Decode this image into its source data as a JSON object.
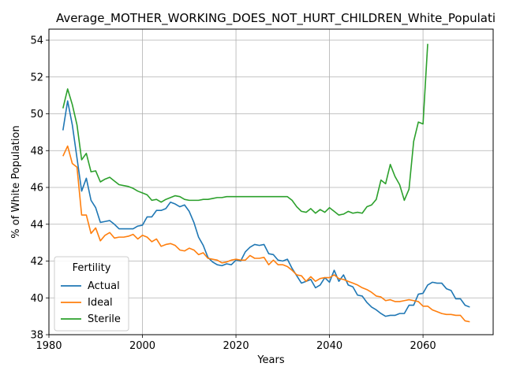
{
  "chart_data": {
    "type": "line",
    "title": "Average_MOTHER_WORKING_DOES_NOT_HURT_CHILDREN_White_Populati",
    "xlabel": "Years",
    "ylabel": "% of White Population",
    "xlim": [
      1980,
      2075
    ],
    "ylim": [
      38,
      54.6
    ],
    "xticks": [
      1980,
      2000,
      2020,
      2040,
      2060
    ],
    "yticks": [
      38,
      40,
      42,
      44,
      46,
      48,
      50,
      52,
      54
    ],
    "grid": true,
    "legend": {
      "title": "Fertility",
      "position": "lower-left"
    },
    "series": [
      {
        "name": "Actual",
        "color": "#1f77b4",
        "points": [
          [
            1983,
            49.1
          ],
          [
            1984,
            50.7
          ],
          [
            1985,
            49.4
          ],
          [
            1986,
            47.6
          ],
          [
            1987,
            45.8
          ],
          [
            1988,
            46.5
          ],
          [
            1989,
            45.3
          ],
          [
            1990,
            44.9
          ],
          [
            1991,
            44.1
          ],
          [
            1992,
            44.15
          ],
          [
            1993,
            44.2
          ],
          [
            1994,
            44.0
          ],
          [
            1995,
            43.75
          ],
          [
            1996,
            43.75
          ],
          [
            1997,
            43.75
          ],
          [
            1998,
            43.75
          ],
          [
            1999,
            43.9
          ],
          [
            2000,
            43.95
          ],
          [
            2001,
            44.4
          ],
          [
            2002,
            44.4
          ],
          [
            2003,
            44.75
          ],
          [
            2004,
            44.75
          ],
          [
            2005,
            44.85
          ],
          [
            2006,
            45.2
          ],
          [
            2007,
            45.1
          ],
          [
            2008,
            44.95
          ],
          [
            2009,
            45.05
          ],
          [
            2010,
            44.7
          ],
          [
            2011,
            44.1
          ],
          [
            2012,
            43.3
          ],
          [
            2013,
            42.85
          ],
          [
            2014,
            42.2
          ],
          [
            2015,
            41.95
          ],
          [
            2016,
            41.8
          ],
          [
            2017,
            41.75
          ],
          [
            2018,
            41.85
          ],
          [
            2019,
            41.8
          ],
          [
            2020,
            42.05
          ],
          [
            2021,
            42.0
          ],
          [
            2022,
            42.5
          ],
          [
            2023,
            42.75
          ],
          [
            2024,
            42.9
          ],
          [
            2025,
            42.85
          ],
          [
            2026,
            42.9
          ],
          [
            2027,
            42.4
          ],
          [
            2028,
            42.35
          ],
          [
            2029,
            42.05
          ],
          [
            2030,
            42.0
          ],
          [
            2031,
            42.1
          ],
          [
            2032,
            41.6
          ],
          [
            2033,
            41.2
          ],
          [
            2034,
            40.8
          ],
          [
            2035,
            40.9
          ],
          [
            2036,
            41.0
          ],
          [
            2037,
            40.55
          ],
          [
            2038,
            40.7
          ],
          [
            2039,
            41.1
          ],
          [
            2040,
            40.85
          ],
          [
            2041,
            41.5
          ],
          [
            2042,
            40.9
          ],
          [
            2043,
            41.25
          ],
          [
            2044,
            40.7
          ],
          [
            2045,
            40.6
          ],
          [
            2046,
            40.15
          ],
          [
            2047,
            40.1
          ],
          [
            2048,
            39.75
          ],
          [
            2049,
            39.5
          ],
          [
            2050,
            39.35
          ],
          [
            2051,
            39.15
          ],
          [
            2052,
            39.0
          ],
          [
            2053,
            39.05
          ],
          [
            2054,
            39.05
          ],
          [
            2055,
            39.15
          ],
          [
            2056,
            39.15
          ],
          [
            2057,
            39.6
          ],
          [
            2058,
            39.6
          ],
          [
            2059,
            40.2
          ],
          [
            2060,
            40.25
          ],
          [
            2061,
            40.7
          ],
          [
            2062,
            40.85
          ],
          [
            2063,
            40.8
          ],
          [
            2064,
            40.8
          ],
          [
            2065,
            40.5
          ],
          [
            2066,
            40.4
          ],
          [
            2067,
            39.95
          ],
          [
            2068,
            39.95
          ],
          [
            2069,
            39.6
          ],
          [
            2070,
            39.5
          ]
        ]
      },
      {
        "name": "Ideal",
        "color": "#ff7f0e",
        "points": [
          [
            1983,
            47.7
          ],
          [
            1984,
            48.25
          ],
          [
            1985,
            47.3
          ],
          [
            1986,
            47.1
          ],
          [
            1987,
            44.5
          ],
          [
            1988,
            44.5
          ],
          [
            1989,
            43.5
          ],
          [
            1990,
            43.8
          ],
          [
            1991,
            43.1
          ],
          [
            1992,
            43.4
          ],
          [
            1993,
            43.55
          ],
          [
            1994,
            43.25
          ],
          [
            1995,
            43.3
          ],
          [
            1996,
            43.3
          ],
          [
            1997,
            43.35
          ],
          [
            1998,
            43.45
          ],
          [
            1999,
            43.2
          ],
          [
            2000,
            43.4
          ],
          [
            2001,
            43.3
          ],
          [
            2002,
            43.05
          ],
          [
            2003,
            43.2
          ],
          [
            2004,
            42.8
          ],
          [
            2005,
            42.9
          ],
          [
            2006,
            42.95
          ],
          [
            2007,
            42.85
          ],
          [
            2008,
            42.6
          ],
          [
            2009,
            42.55
          ],
          [
            2010,
            42.7
          ],
          [
            2011,
            42.6
          ],
          [
            2012,
            42.35
          ],
          [
            2013,
            42.45
          ],
          [
            2014,
            42.15
          ],
          [
            2015,
            42.1
          ],
          [
            2016,
            42.05
          ],
          [
            2017,
            41.9
          ],
          [
            2018,
            41.95
          ],
          [
            2019,
            42.05
          ],
          [
            2020,
            42.1
          ],
          [
            2021,
            42.05
          ],
          [
            2022,
            42.05
          ],
          [
            2023,
            42.3
          ],
          [
            2024,
            42.15
          ],
          [
            2025,
            42.15
          ],
          [
            2026,
            42.2
          ],
          [
            2027,
            41.8
          ],
          [
            2028,
            42.05
          ],
          [
            2029,
            41.8
          ],
          [
            2030,
            41.8
          ],
          [
            2031,
            41.7
          ],
          [
            2032,
            41.5
          ],
          [
            2033,
            41.25
          ],
          [
            2034,
            41.2
          ],
          [
            2035,
            40.9
          ],
          [
            2036,
            41.15
          ],
          [
            2037,
            40.9
          ],
          [
            2038,
            41.05
          ],
          [
            2039,
            41.1
          ],
          [
            2040,
            41.1
          ],
          [
            2041,
            41.25
          ],
          [
            2042,
            41.05
          ],
          [
            2043,
            41.0
          ],
          [
            2044,
            40.9
          ],
          [
            2045,
            40.8
          ],
          [
            2046,
            40.7
          ],
          [
            2047,
            40.55
          ],
          [
            2048,
            40.45
          ],
          [
            2049,
            40.3
          ],
          [
            2050,
            40.1
          ],
          [
            2051,
            40.05
          ],
          [
            2052,
            39.85
          ],
          [
            2053,
            39.9
          ],
          [
            2054,
            39.8
          ],
          [
            2055,
            39.8
          ],
          [
            2056,
            39.85
          ],
          [
            2057,
            39.9
          ],
          [
            2058,
            39.85
          ],
          [
            2059,
            39.8
          ],
          [
            2060,
            39.55
          ],
          [
            2061,
            39.55
          ],
          [
            2062,
            39.35
          ],
          [
            2063,
            39.25
          ],
          [
            2064,
            39.15
          ],
          [
            2065,
            39.1
          ],
          [
            2066,
            39.1
          ],
          [
            2067,
            39.05
          ],
          [
            2068,
            39.05
          ],
          [
            2069,
            38.75
          ],
          [
            2070,
            38.7
          ]
        ]
      },
      {
        "name": "Sterile",
        "color": "#2ca02c",
        "points": [
          [
            1983,
            50.3
          ],
          [
            1984,
            51.35
          ],
          [
            1985,
            50.5
          ],
          [
            1986,
            49.4
          ],
          [
            1987,
            47.5
          ],
          [
            1988,
            47.85
          ],
          [
            1989,
            46.85
          ],
          [
            1990,
            46.9
          ],
          [
            1991,
            46.3
          ],
          [
            1992,
            46.45
          ],
          [
            1993,
            46.55
          ],
          [
            1994,
            46.35
          ],
          [
            1995,
            46.15
          ],
          [
            1996,
            46.1
          ],
          [
            1997,
            46.05
          ],
          [
            1998,
            45.95
          ],
          [
            1999,
            45.8
          ],
          [
            2000,
            45.7
          ],
          [
            2001,
            45.6
          ],
          [
            2002,
            45.3
          ],
          [
            2003,
            45.35
          ],
          [
            2004,
            45.2
          ],
          [
            2005,
            45.35
          ],
          [
            2006,
            45.45
          ],
          [
            2007,
            45.55
          ],
          [
            2008,
            45.5
          ],
          [
            2009,
            45.35
          ],
          [
            2010,
            45.3
          ],
          [
            2011,
            45.3
          ],
          [
            2012,
            45.3
          ],
          [
            2013,
            45.35
          ],
          [
            2014,
            45.35
          ],
          [
            2015,
            45.4
          ],
          [
            2016,
            45.45
          ],
          [
            2017,
            45.45
          ],
          [
            2018,
            45.5
          ],
          [
            2019,
            45.5
          ],
          [
            2020,
            45.5
          ],
          [
            2021,
            45.5
          ],
          [
            2022,
            45.5
          ],
          [
            2023,
            45.5
          ],
          [
            2024,
            45.5
          ],
          [
            2025,
            45.5
          ],
          [
            2026,
            45.5
          ],
          [
            2027,
            45.5
          ],
          [
            2028,
            45.5
          ],
          [
            2029,
            45.5
          ],
          [
            2030,
            45.5
          ],
          [
            2031,
            45.5
          ],
          [
            2032,
            45.3
          ],
          [
            2033,
            44.95
          ],
          [
            2034,
            44.7
          ],
          [
            2035,
            44.65
          ],
          [
            2036,
            44.85
          ],
          [
            2037,
            44.6
          ],
          [
            2038,
            44.8
          ],
          [
            2039,
            44.65
          ],
          [
            2040,
            44.9
          ],
          [
            2041,
            44.7
          ],
          [
            2042,
            44.5
          ],
          [
            2043,
            44.55
          ],
          [
            2044,
            44.7
          ],
          [
            2045,
            44.6
          ],
          [
            2046,
            44.65
          ],
          [
            2047,
            44.6
          ],
          [
            2048,
            44.95
          ],
          [
            2049,
            45.05
          ],
          [
            2050,
            45.35
          ],
          [
            2051,
            46.4
          ],
          [
            2052,
            46.2
          ],
          [
            2053,
            47.25
          ],
          [
            2054,
            46.6
          ],
          [
            2055,
            46.15
          ],
          [
            2056,
            45.3
          ],
          [
            2057,
            45.9
          ],
          [
            2058,
            48.5
          ],
          [
            2059,
            49.55
          ],
          [
            2060,
            49.45
          ],
          [
            2061,
            53.8
          ]
        ]
      }
    ]
  }
}
